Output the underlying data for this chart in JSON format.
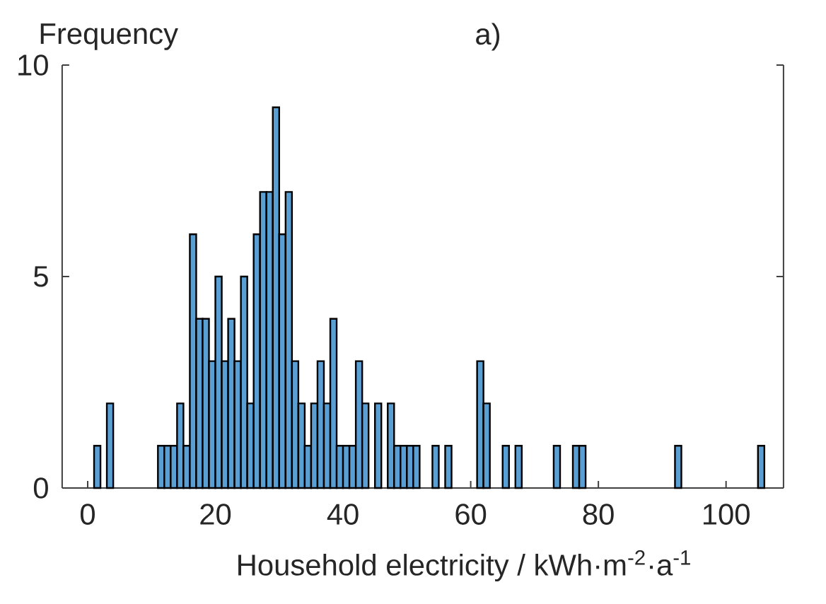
{
  "chart_data": {
    "type": "histogram",
    "title": "a)",
    "xlabel": "Household electricity / kWh·m$^{-2}$·a$^{-1}$",
    "ylabel": "Frequency",
    "bins": [
      1,
      2,
      3,
      4,
      5,
      6,
      7,
      8,
      9,
      10,
      11,
      12,
      13,
      14,
      15,
      16,
      17,
      18,
      19,
      20,
      21,
      22,
      23,
      24,
      25,
      26,
      27,
      28,
      29,
      30,
      31,
      32,
      33,
      34,
      35,
      36,
      37,
      38,
      39,
      40,
      41,
      42,
      43,
      44,
      45,
      46,
      47,
      48,
      49,
      50,
      51,
      52,
      53,
      54,
      55,
      56,
      57,
      58,
      59,
      60,
      61,
      62,
      63,
      64,
      65,
      66,
      67,
      68,
      69,
      70,
      71,
      72,
      73,
      74,
      75,
      76,
      77,
      78,
      79,
      80,
      81,
      82,
      83,
      84,
      85,
      86,
      87,
      88,
      89,
      90,
      91,
      92,
      93,
      94,
      95,
      96,
      97,
      98,
      99,
      100,
      101,
      102,
      103,
      104,
      105,
      106
    ],
    "values": [
      1,
      0,
      2,
      0,
      0,
      0,
      0,
      0,
      0,
      0,
      1,
      1,
      1,
      2,
      1,
      6,
      4,
      4,
      3,
      5,
      3,
      4,
      3,
      5,
      2,
      6,
      7,
      7,
      9,
      6,
      7,
      3,
      2,
      1,
      2,
      3,
      2,
      4,
      1,
      1,
      1,
      3,
      2,
      0,
      2,
      0,
      2,
      1,
      1,
      1,
      1,
      0,
      0,
      1,
      0,
      1,
      0,
      0,
      0,
      0,
      3,
      2,
      0,
      0,
      1,
      0,
      1,
      0,
      0,
      0,
      0,
      0,
      1,
      0,
      0,
      1,
      1,
      0,
      0,
      0,
      0,
      0,
      0,
      0,
      0,
      0,
      0,
      0,
      0,
      0,
      0,
      1,
      0,
      0,
      0,
      0,
      0,
      0,
      0,
      0,
      0,
      0,
      0,
      0,
      1
    ],
    "color": "#5a9fd4",
    "xlim": [
      -4,
      109
    ],
    "ylim": [
      0,
      10
    ],
    "xticks": [
      0,
      20,
      40,
      60,
      80,
      100
    ],
    "yticks": [
      0,
      5,
      10
    ],
    "grid": false
  }
}
